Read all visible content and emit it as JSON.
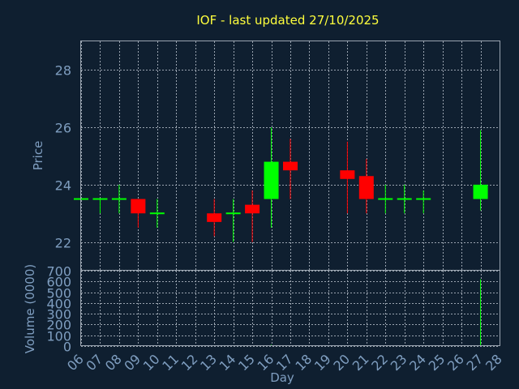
{
  "chart_data": {
    "type": "candlestick",
    "title": "IOF - last updated 27/10/2025",
    "xlabel": "Day",
    "price_ylabel": "Price",
    "volume_ylabel": "Volume (0000)",
    "x_tick_labels": [
      "06",
      "07",
      "08",
      "09",
      "10",
      "11",
      "12",
      "13",
      "14",
      "15",
      "16",
      "17",
      "18",
      "19",
      "20",
      "21",
      "22",
      "23",
      "24",
      "25",
      "26",
      "27",
      "28"
    ],
    "price_ylim": [
      21,
      29
    ],
    "price_ticks": [
      22,
      24,
      26,
      28
    ],
    "volume_ylim": [
      0,
      700
    ],
    "volume_ticks": [
      0,
      100,
      200,
      300,
      400,
      500,
      600,
      700
    ],
    "grid": true,
    "up_color": "#00ff00",
    "down_color": "#ff0000",
    "candles": [
      {
        "day": "06",
        "open": 23.5,
        "high": 23.5,
        "low": 23.5,
        "close": 23.5,
        "volume": 0
      },
      {
        "day": "07",
        "open": 23.5,
        "high": 23.5,
        "low": 23.0,
        "close": 23.5,
        "volume": 1
      },
      {
        "day": "08",
        "open": 23.5,
        "high": 24.0,
        "low": 23.0,
        "close": 23.5,
        "volume": 2
      },
      {
        "day": "09",
        "open": 23.5,
        "high": 23.5,
        "low": 22.5,
        "close": 23.0,
        "volume": 3
      },
      {
        "day": "10",
        "open": 23.0,
        "high": 23.5,
        "low": 22.5,
        "close": 23.0,
        "volume": 1
      },
      {
        "day": "13",
        "open": 23.0,
        "high": 23.5,
        "low": 22.2,
        "close": 22.7,
        "volume": 3
      },
      {
        "day": "14",
        "open": 23.0,
        "high": 23.5,
        "low": 22.0,
        "close": 23.0,
        "volume": 1
      },
      {
        "day": "15",
        "open": 23.3,
        "high": 23.8,
        "low": 22.0,
        "close": 23.0,
        "volume": 3
      },
      {
        "day": "16",
        "open": 23.5,
        "high": 26.0,
        "low": 22.5,
        "close": 24.8,
        "volume": 12
      },
      {
        "day": "17",
        "open": 24.8,
        "high": 25.6,
        "low": 23.5,
        "close": 24.5,
        "volume": 3
      },
      {
        "day": "20",
        "open": 24.5,
        "high": 25.5,
        "low": 23.0,
        "close": 24.2,
        "volume": 3
      },
      {
        "day": "21",
        "open": 24.3,
        "high": 24.9,
        "low": 23.0,
        "close": 23.5,
        "volume": 2
      },
      {
        "day": "22",
        "open": 23.5,
        "high": 24.0,
        "low": 23.0,
        "close": 23.5,
        "volume": 1
      },
      {
        "day": "23",
        "open": 23.5,
        "high": 24.0,
        "low": 23.0,
        "close": 23.5,
        "volume": 1
      },
      {
        "day": "24",
        "open": 23.5,
        "high": 23.8,
        "low": 23.0,
        "close": 23.5,
        "volume": 1
      },
      {
        "day": "27",
        "open": 23.5,
        "high": 25.9,
        "low": 23.1,
        "close": 24.0,
        "volume": 620
      }
    ]
  }
}
